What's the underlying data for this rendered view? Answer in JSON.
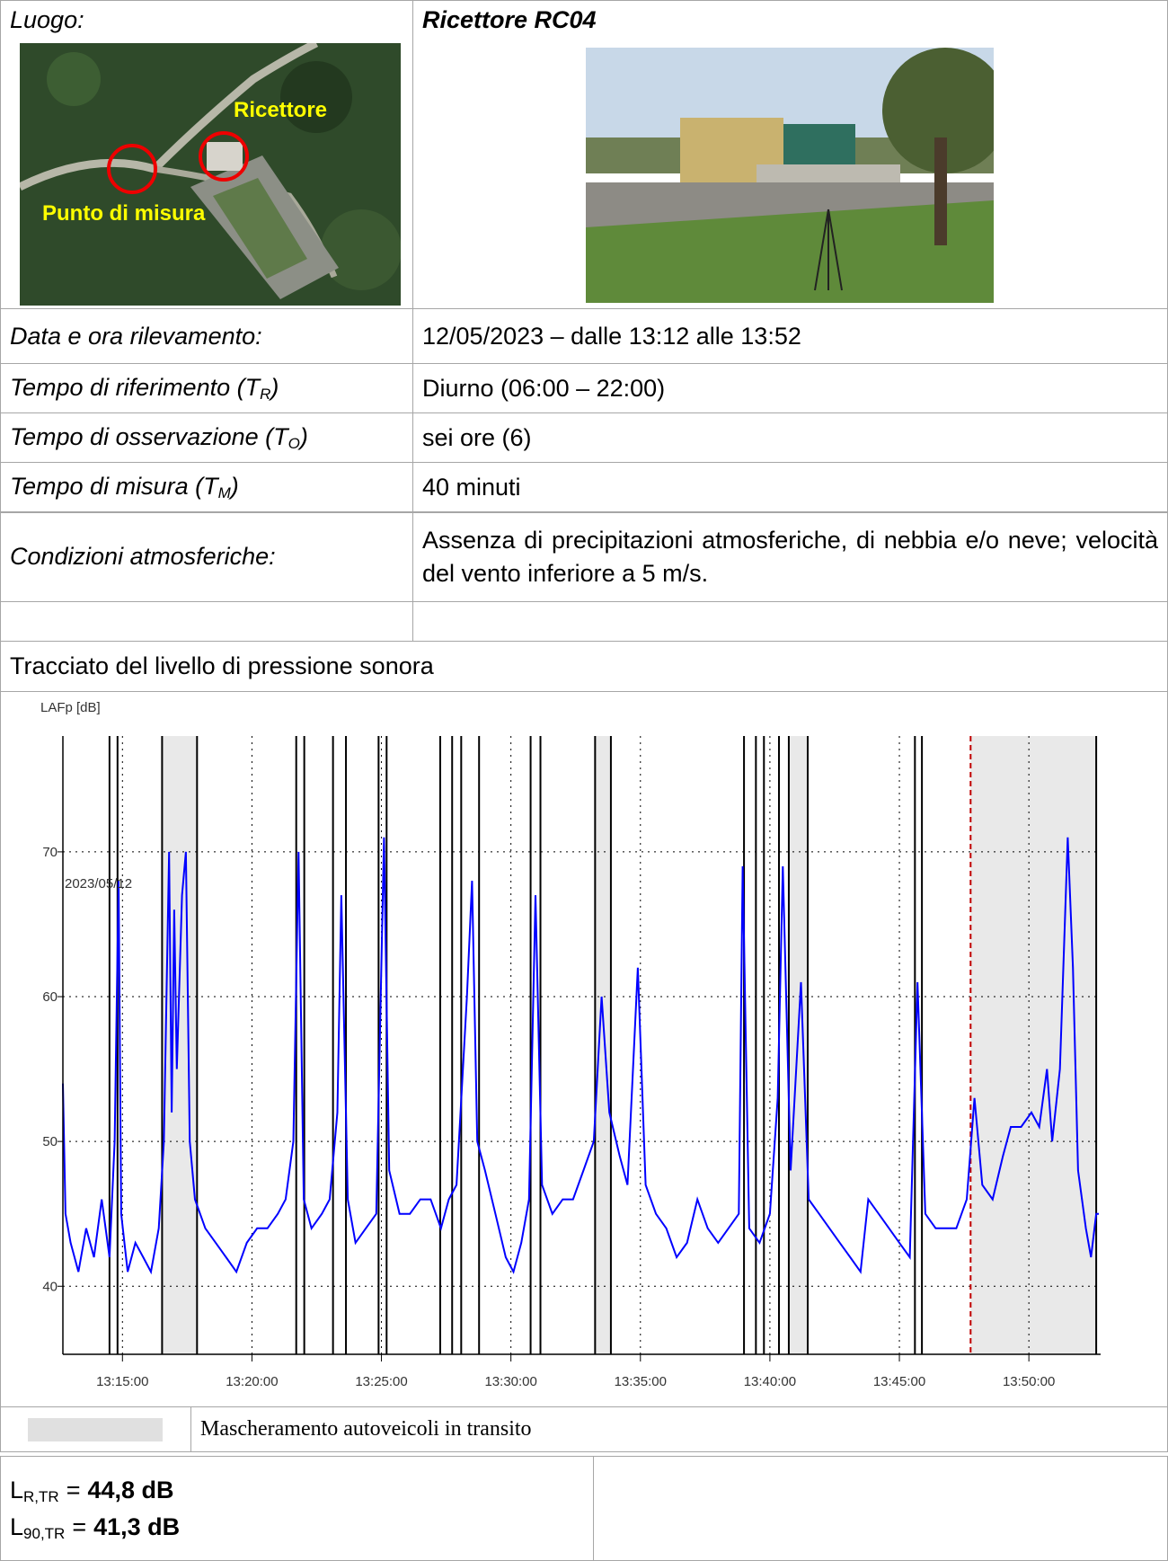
{
  "header": {
    "place_label": "Luogo:",
    "map_labels": [
      "Ricettore",
      "Punto di misura"
    ],
    "receiver": "Ricettore RC04"
  },
  "table": {
    "rows": [
      {
        "label": "Data e ora rilevamento:",
        "value": "12/05/2023 – dalle 13:12 alle 13:52"
      },
      {
        "label": "Tempo di riferimento (T",
        "sub": "R",
        "end": ")",
        "value": "Diurno (06:00 – 22:00)"
      },
      {
        "label": "Tempo di osservazione (T",
        "sub": "O",
        "end": ")",
        "value": "sei ore (6)"
      },
      {
        "label": "Tempo di misura (T",
        "sub": "M",
        "end": ")",
        "value": "40 minuti"
      },
      {
        "label": "Condizioni atmosferiche:",
        "value": "Assenza di precipitazioni atmosferiche, di nebbia e/o neve; velocità del vento inferiore a 5 m/s."
      }
    ]
  },
  "chart_title": "Tracciato del livello di pressione sonora",
  "chart_data": {
    "type": "line",
    "y_label": "LAFp [dB]",
    "annotation": "2023/05/12",
    "color": "#0000ff",
    "x": [
      12.7,
      12.8,
      13.0,
      13.3,
      13.6,
      13.9,
      14.2,
      14.5,
      14.7,
      14.85,
      14.95,
      15.2,
      15.5,
      15.8,
      16.1,
      16.4,
      16.6,
      16.8,
      16.9,
      17.0,
      17.1,
      17.3,
      17.45,
      17.6,
      17.8,
      18.2,
      18.6,
      19.0,
      19.4,
      19.8,
      20.2,
      20.6,
      21.0,
      21.3,
      21.6,
      21.8,
      22.0,
      22.3,
      22.7,
      23.0,
      23.3,
      23.45,
      23.7,
      24.0,
      24.4,
      24.8,
      25.1,
      25.3,
      25.7,
      26.1,
      26.5,
      26.9,
      27.3,
      27.6,
      27.9,
      28.3,
      28.5,
      28.7,
      29.0,
      29.4,
      29.8,
      30.1,
      30.4,
      30.7,
      30.95,
      31.2,
      31.6,
      32.0,
      32.4,
      32.8,
      33.2,
      33.5,
      33.8,
      34.2,
      34.5,
      34.9,
      35.2,
      35.6,
      36.0,
      36.4,
      36.8,
      37.2,
      37.6,
      38.0,
      38.4,
      38.8,
      38.95,
      39.2,
      39.6,
      40.0,
      40.3,
      40.5,
      40.8,
      41.2,
      41.5,
      41.9,
      42.3,
      42.7,
      43.1,
      43.5,
      43.8,
      44.2,
      44.6,
      45.0,
      45.4,
      45.7,
      46.0,
      46.4,
      46.8,
      47.2,
      47.6,
      47.9,
      48.2,
      48.6,
      49.0,
      49.3,
      49.7,
      50.1,
      50.4,
      50.7,
      50.9,
      51.2,
      51.5,
      51.7,
      51.9,
      52.2,
      52.4,
      52.6,
      52.7
    ],
    "values": [
      54,
      45,
      43,
      41,
      44,
      42,
      46,
      42,
      50,
      68,
      45,
      41,
      43,
      42,
      41,
      44,
      50,
      70,
      52,
      66,
      55,
      67,
      70,
      50,
      46,
      44,
      43,
      42,
      41,
      43,
      44,
      44,
      45,
      46,
      50,
      70,
      46,
      44,
      45,
      46,
      52,
      67,
      46,
      43,
      44,
      45,
      71,
      48,
      45,
      45,
      46,
      46,
      44,
      46,
      47,
      60,
      68,
      50,
      48,
      45,
      42,
      41,
      43,
      46,
      67,
      47,
      45,
      46,
      46,
      48,
      50,
      60,
      52,
      49,
      47,
      62,
      47,
      45,
      44,
      42,
      43,
      46,
      44,
      43,
      44,
      45,
      69,
      44,
      43,
      45,
      53,
      69,
      48,
      61,
      46,
      45,
      44,
      43,
      42,
      41,
      46,
      45,
      44,
      43,
      42,
      61,
      45,
      44,
      44,
      44,
      46,
      53,
      47,
      46,
      49,
      51,
      51,
      52,
      51,
      55,
      50,
      55,
      71,
      62,
      48,
      44,
      42,
      45,
      45
    ],
    "xlim": [
      12.7,
      52.77
    ],
    "ylim": [
      35.3,
      78
    ],
    "yticks": [
      40,
      50,
      60,
      70
    ],
    "xticks": [
      {
        "value": 15,
        "label": "13:15:00"
      },
      {
        "value": 20,
        "label": "13:20:00"
      },
      {
        "value": 25,
        "label": "13:25:00"
      },
      {
        "value": 30,
        "label": "13:30:00"
      },
      {
        "value": 35,
        "label": "13:35:00"
      },
      {
        "value": 40,
        "label": "13:40:00"
      },
      {
        "value": 45,
        "label": "13:45:00"
      },
      {
        "value": 50,
        "label": "13:50:00"
      }
    ],
    "grid": true,
    "markers": [
      14.5,
      14.81,
      16.53,
      17.88,
      21.71,
      22.02,
      23.13,
      23.63,
      24.89,
      25.2,
      27.27,
      27.73,
      28.08,
      28.77,
      30.76,
      31.14,
      33.25,
      33.86,
      39.0,
      39.46,
      39.77,
      40.35,
      40.73,
      41.46,
      45.6,
      45.87,
      52.6
    ],
    "cursor": 47.75,
    "cursor_color": "#c00000",
    "masks": [
      [
        16.53,
        17.88
      ],
      [
        33.25,
        33.86
      ],
      [
        40.73,
        41.46
      ],
      [
        47.75,
        52.6
      ]
    ],
    "mask_color": "#e0e0e0",
    "mask_label": "Mascheramento autoveicoli in transito"
  },
  "results": [
    {
      "symbol": "L",
      "sub": "R,TR",
      "equals": "=",
      "value": "44,8 dB"
    },
    {
      "symbol": "L",
      "sub": "90,TR",
      "equals": "=",
      "value": "41,3 dB"
    }
  ]
}
